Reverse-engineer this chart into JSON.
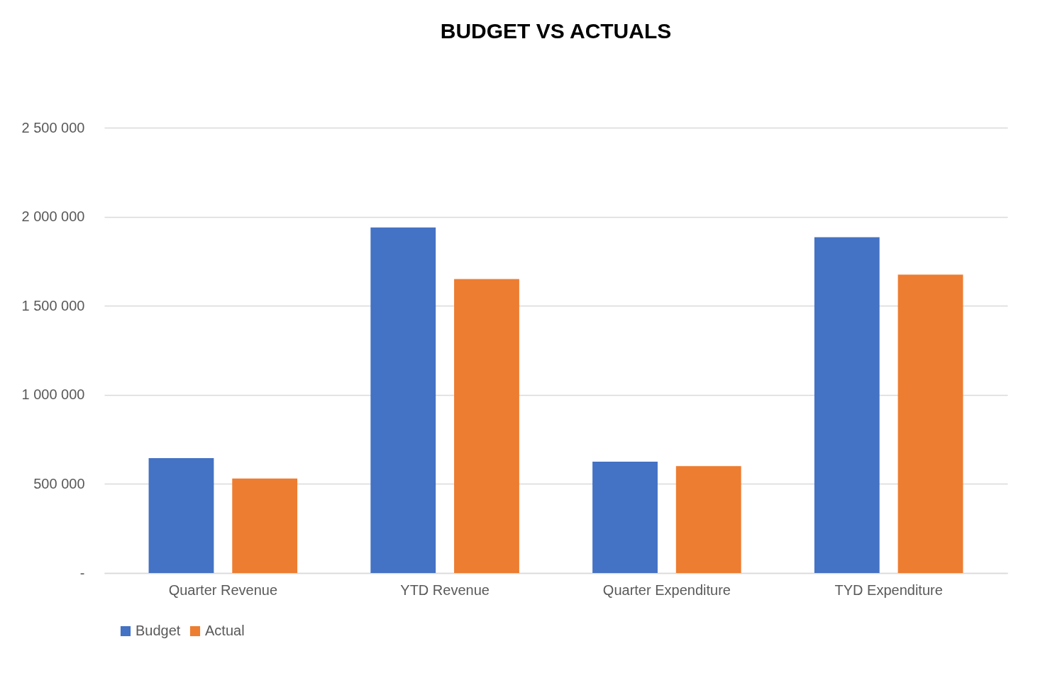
{
  "chart_data": {
    "type": "bar",
    "title": "BUDGET VS ACTUALS",
    "categories": [
      "Quarter Revenue",
      "YTD Revenue",
      "Quarter Expenditure",
      "TYD Expenditure"
    ],
    "series": [
      {
        "name": "Budget",
        "color": "#4472c4",
        "values": [
          645000,
          1940000,
          625000,
          1885000
        ]
      },
      {
        "name": "Actual",
        "color": "#ed7d31",
        "values": [
          530000,
          1650000,
          600000,
          1675000
        ]
      }
    ],
    "ylim": [
      0,
      2500000
    ],
    "yticks": [
      {
        "value": 0,
        "label": "-"
      },
      {
        "value": 500000,
        "label": "500 000"
      },
      {
        "value": 1000000,
        "label": "1 000 000"
      },
      {
        "value": 1500000,
        "label": "1 500 000"
      },
      {
        "value": 2000000,
        "label": "2 000 000"
      },
      {
        "value": 2500000,
        "label": "2 500 000"
      }
    ],
    "grid": "y",
    "legend": "bottom"
  }
}
